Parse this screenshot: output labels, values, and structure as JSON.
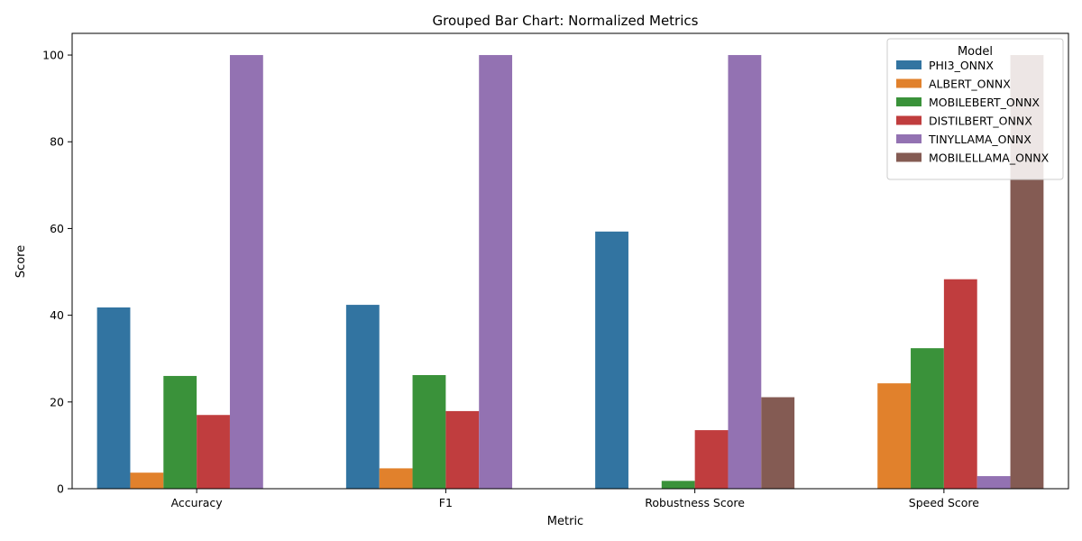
{
  "chart_data": {
    "type": "bar",
    "title": "Grouped Bar Chart: Normalized Metrics",
    "xlabel": "Metric",
    "ylabel": "Score",
    "ylim": [
      0,
      105
    ],
    "yticks": [
      0,
      20,
      40,
      60,
      80,
      100
    ],
    "categories": [
      "Accuracy",
      "F1",
      "Robustness Score",
      "Speed Score"
    ],
    "legend": {
      "title": "Model",
      "placement": "top-right"
    },
    "grid": false,
    "series": [
      {
        "name": "PHI3_ONNX",
        "color": "#3274a1",
        "values": [
          41.8,
          42.4,
          59.3,
          0
        ]
      },
      {
        "name": "ALBERT_ONNX",
        "color": "#e1812c",
        "values": [
          3.7,
          4.7,
          0,
          24.3
        ]
      },
      {
        "name": "MOBILEBERT_ONNX",
        "color": "#3a923a",
        "values": [
          26.0,
          26.2,
          1.8,
          32.4
        ]
      },
      {
        "name": "DISTILBERT_ONNX",
        "color": "#c03d3e",
        "values": [
          17.0,
          17.9,
          13.5,
          48.3
        ]
      },
      {
        "name": "TINYLLAMA_ONNX",
        "color": "#9372b2",
        "values": [
          100,
          100,
          100,
          2.9
        ]
      },
      {
        "name": "MOBILELLAMA_ONNX",
        "color": "#845b53",
        "values": [
          0,
          0,
          21.1,
          100
        ]
      }
    ]
  }
}
